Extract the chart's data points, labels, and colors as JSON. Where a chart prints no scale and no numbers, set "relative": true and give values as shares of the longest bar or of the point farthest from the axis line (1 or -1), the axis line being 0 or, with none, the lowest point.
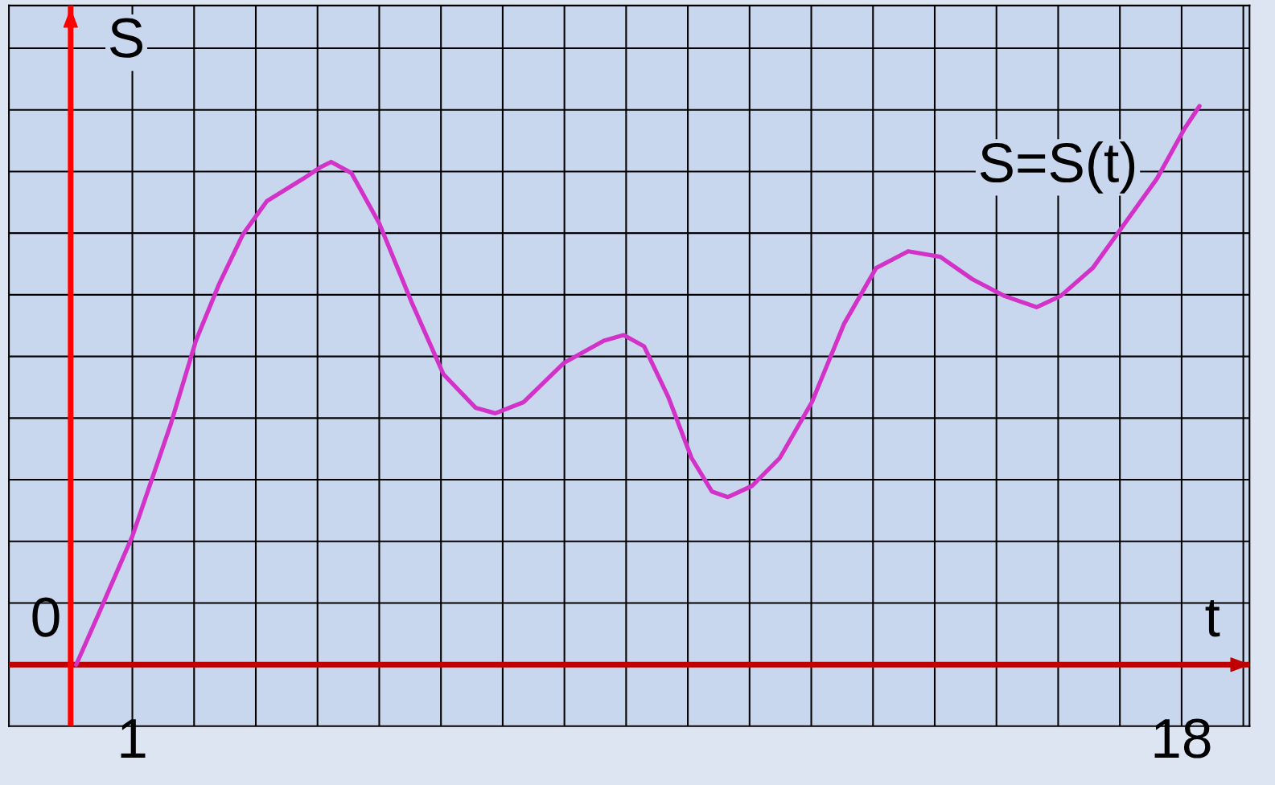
{
  "chart_data": {
    "type": "line",
    "relative": true,
    "xlabel": "t",
    "ylabel": "S",
    "annotations": [
      "0"
    ],
    "ref_lines": [
      {
        "axis": "y",
        "value": 0,
        "color": "#c00000"
      },
      {
        "axis": "x",
        "value": 0,
        "color": "#ff0000"
      }
    ],
    "xlim": [
      -1,
      19.1
    ],
    "xticks": [
      {
        "value": 0,
        "label": null
      },
      1,
      {
        "value": 2,
        "label": null
      },
      {
        "value": 3,
        "label": null
      },
      {
        "value": 4,
        "label": null
      },
      {
        "value": 5,
        "label": null
      },
      {
        "value": 6,
        "label": null
      },
      {
        "value": 7,
        "label": null
      },
      {
        "value": 8,
        "label": null
      },
      {
        "value": 9,
        "label": null
      },
      {
        "value": 10,
        "label": null
      },
      {
        "value": 11,
        "label": null
      },
      {
        "value": 12,
        "label": null
      },
      {
        "value": 13,
        "label": null
      },
      {
        "value": 14,
        "label": null
      },
      {
        "value": 15,
        "label": null
      },
      {
        "value": 16,
        "label": null
      },
      {
        "value": 17,
        "label": null
      },
      18,
      {
        "value": 19,
        "label": null
      }
    ],
    "grid": true,
    "legend": false,
    "marker": "none",
    "line_style": "solid",
    "series": [
      {
        "name": "S=S(t)",
        "color": "#d232c8",
        "x": [
          0.09,
          0.45,
          1.0,
          1.62,
          2.03,
          2.4,
          2.79,
          3.18,
          3.77,
          4.04,
          4.22,
          4.55,
          5.0,
          5.52,
          6.04,
          6.56,
          6.88,
          7.34,
          7.99,
          8.64,
          8.96,
          9.29,
          9.68,
          10.06,
          10.39,
          10.65,
          11.04,
          11.49,
          12.01,
          12.53,
          13.05,
          13.57,
          14.09,
          14.61,
          15.13,
          15.65,
          16.04,
          16.56,
          17.08,
          17.6,
          18.05,
          18.29
        ],
        "values": [
          0.0,
          0.09,
          0.23,
          0.43,
          0.58,
          0.68,
          0.77,
          0.83,
          0.87,
          0.89,
          0.9,
          0.88,
          0.79,
          0.65,
          0.52,
          0.46,
          0.45,
          0.47,
          0.54,
          0.58,
          0.59,
          0.57,
          0.48,
          0.37,
          0.31,
          0.3,
          0.32,
          0.37,
          0.47,
          0.61,
          0.71,
          0.74,
          0.73,
          0.69,
          0.66,
          0.64,
          0.66,
          0.71,
          0.79,
          0.87,
          0.96,
          1.0
        ]
      }
    ]
  }
}
